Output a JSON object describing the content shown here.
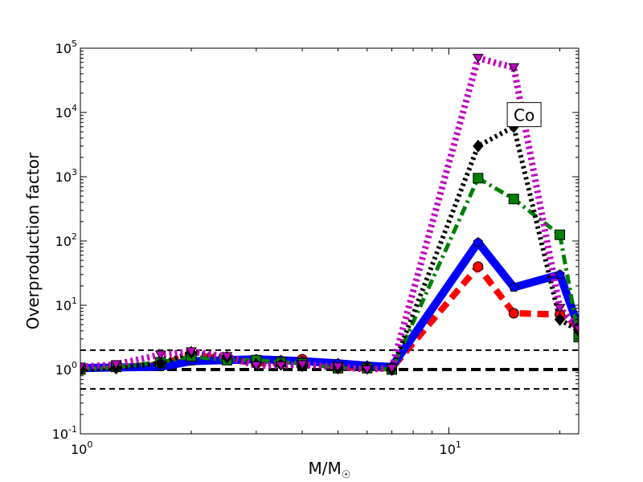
{
  "chart_data": {
    "type": "line",
    "xscale": "log",
    "yscale": "log",
    "xlim": [
      1,
      22.5
    ],
    "ylim": [
      0.1,
      100000
    ],
    "xlabel": "M/M",
    "xlabel_symbol": "☉",
    "ylabel": "Overproduction factor",
    "x_ticks": [
      {
        "value": 1,
        "base": "10",
        "exp": "0"
      },
      {
        "value": 10,
        "base": "10",
        "exp": "1"
      }
    ],
    "y_ticks": [
      {
        "value": 0.1,
        "base": "10",
        "exp": "-1"
      },
      {
        "value": 1,
        "base": "10",
        "exp": "0"
      },
      {
        "value": 10,
        "base": "10",
        "exp": "1"
      },
      {
        "value": 100,
        "base": "10",
        "exp": "2"
      },
      {
        "value": 1000,
        "base": "10",
        "exp": "3"
      },
      {
        "value": 10000,
        "base": "10",
        "exp": "4"
      },
      {
        "value": 100000,
        "base": "10",
        "exp": "5"
      }
    ],
    "reference_lines": [
      {
        "y": 2,
        "style": "thin-dashed",
        "color": "#000000"
      },
      {
        "y": 1,
        "style": "thick-dashed",
        "color": "#000000"
      },
      {
        "y": 0.5,
        "style": "thin-dashed",
        "color": "#000000"
      }
    ],
    "annotation": {
      "text": "Co",
      "x": 16.0,
      "y": 9000
    },
    "series": [
      {
        "color": "#ff0000",
        "marker": "circle",
        "line": "dashed",
        "points": [
          [
            1.0,
            1.05
          ],
          [
            1.25,
            1.08
          ],
          [
            1.65,
            1.2
          ],
          [
            2.0,
            1.7
          ],
          [
            2.5,
            1.45
          ],
          [
            3.0,
            1.25
          ],
          [
            3.5,
            1.3
          ],
          [
            4.0,
            1.45
          ],
          [
            5.0,
            1.1
          ],
          [
            6.0,
            1.05
          ],
          [
            7.0,
            1.05
          ],
          [
            12.0,
            40
          ],
          [
            15.0,
            7.5
          ],
          [
            20.0,
            7.2
          ],
          [
            22.5,
            4.5
          ]
        ]
      },
      {
        "color": "#0000ff",
        "marker": "pentagon",
        "line": "solid",
        "points": [
          [
            1.0,
            1.05
          ],
          [
            1.25,
            1.08
          ],
          [
            1.65,
            1.1
          ],
          [
            2.0,
            1.35
          ],
          [
            2.5,
            1.4
          ],
          [
            3.0,
            1.45
          ],
          [
            3.5,
            1.4
          ],
          [
            4.0,
            1.35
          ],
          [
            5.0,
            1.25
          ],
          [
            6.0,
            1.15
          ],
          [
            7.0,
            1.1
          ],
          [
            12.0,
            95
          ],
          [
            15.0,
            19
          ],
          [
            20.0,
            30
          ],
          [
            22.5,
            4.5
          ]
        ]
      },
      {
        "color": "#008000",
        "marker": "square",
        "line": "dashdot",
        "points": [
          [
            1.0,
            1.0
          ],
          [
            1.25,
            1.1
          ],
          [
            1.65,
            1.3
          ],
          [
            2.0,
            1.6
          ],
          [
            2.5,
            1.4
          ],
          [
            3.0,
            1.4
          ],
          [
            3.5,
            1.3
          ],
          [
            4.0,
            1.25
          ],
          [
            5.0,
            1.05
          ],
          [
            6.0,
            1.05
          ],
          [
            7.0,
            1.0
          ],
          [
            12.0,
            950
          ],
          [
            15.0,
            450
          ],
          [
            20.0,
            125
          ],
          [
            22.5,
            3.2
          ]
        ]
      },
      {
        "color": "#000000",
        "marker": "diamond",
        "line": "dotted",
        "points": [
          [
            1.0,
            1.0
          ],
          [
            1.25,
            1.05
          ],
          [
            1.65,
            1.25
          ],
          [
            2.0,
            1.85
          ],
          [
            2.5,
            1.55
          ],
          [
            3.0,
            1.2
          ],
          [
            3.5,
            1.2
          ],
          [
            4.0,
            1.15
          ],
          [
            5.0,
            1.05
          ],
          [
            6.0,
            1.05
          ],
          [
            7.0,
            1.0
          ],
          [
            12.0,
            3000
          ],
          [
            15.0,
            6000
          ],
          [
            20.0,
            6.0
          ],
          [
            22.5,
            4.0
          ]
        ]
      },
      {
        "color": "#c000c0",
        "marker": "triangle-down",
        "line": "dotted",
        "points": [
          [
            1.0,
            1.1
          ],
          [
            1.25,
            1.2
          ],
          [
            1.65,
            1.7
          ],
          [
            2.0,
            1.9
          ],
          [
            2.5,
            1.6
          ],
          [
            3.0,
            1.15
          ],
          [
            3.5,
            1.15
          ],
          [
            4.0,
            1.2
          ],
          [
            5.0,
            1.1
          ],
          [
            6.0,
            1.0
          ],
          [
            7.0,
            1.05
          ],
          [
            12.0,
            70000
          ],
          [
            15.0,
            50000
          ],
          [
            20.0,
            9.0
          ],
          [
            22.5,
            4.2
          ]
        ]
      }
    ]
  }
}
